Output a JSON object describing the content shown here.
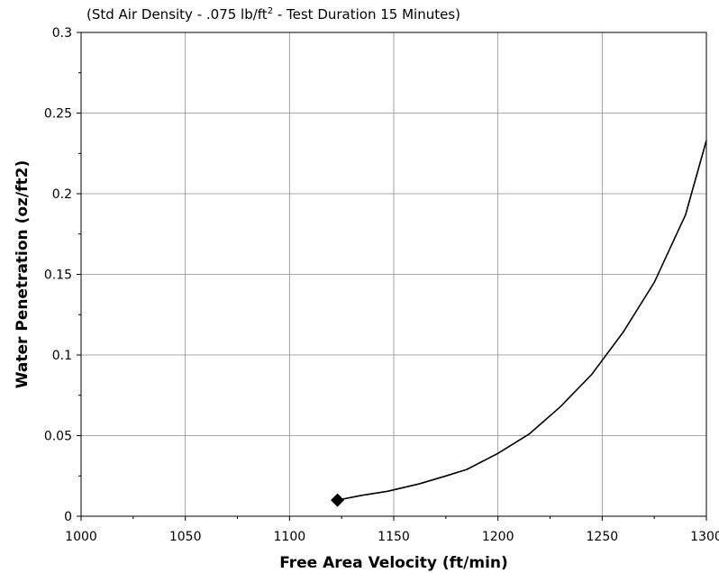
{
  "chart_data": {
    "type": "line",
    "subtitle": {
      "part1": "(Std Air Density - .075 lb/ft",
      "sup": "2",
      "part2": " -  Test Duration 15 Minutes)"
    },
    "xlabel": "Free Area Velocity (ft/min)",
    "ylabel": "Water Penetration (oz/ft2)",
    "xlim": [
      1000,
      1300
    ],
    "ylim": [
      0,
      0.3
    ],
    "x_ticks": [
      "1000",
      "1050",
      "1100",
      "1150",
      "1200",
      "1250",
      "1300"
    ],
    "y_ticks": [
      "0",
      "0.05",
      "0.1",
      "0.15",
      "0.2",
      "0.25",
      "0.3"
    ],
    "grid": true,
    "series": [
      {
        "x": [
          1123,
          1135,
          1147,
          1162,
          1175,
          1185,
          1200,
          1215,
          1230,
          1245,
          1260,
          1275,
          1290,
          1300
        ],
        "y": [
          0.01,
          0.013,
          0.0155,
          0.02,
          0.025,
          0.029,
          0.039,
          0.051,
          0.068,
          0.088,
          0.114,
          0.145,
          0.187,
          0.233
        ],
        "color": "#000000"
      }
    ],
    "markers": [
      {
        "x": 1123,
        "y": 0.01,
        "shape": "diamond",
        "color": "#000000"
      }
    ]
  }
}
